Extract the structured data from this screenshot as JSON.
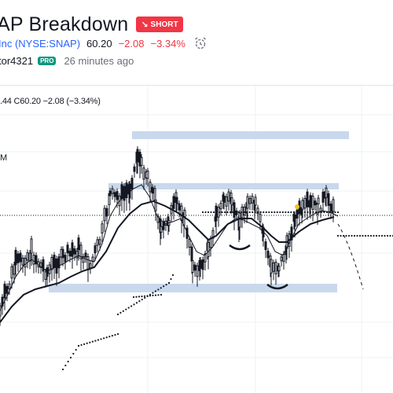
{
  "header": {
    "title": "AP Breakdown",
    "badge_label": "SHORT",
    "symbol_text": "Inc (NYSE:SNAP)",
    "price": "60.20",
    "change": "−2.08",
    "change_pct": "−3.34%",
    "alert_icon": "alarm-clock-icon"
  },
  "author": {
    "name": "tor4321",
    "badge": "PRO",
    "time": "26 minutes ago"
  },
  "legend": {
    "ohlc": ".44 C60.20 −2.08 (−3.34%)",
    "volume": "M"
  },
  "colors": {
    "short_badge": "#f23645",
    "link": "#2962ff",
    "pro_badge": "#089981",
    "zone": "#c9d8ec"
  }
}
